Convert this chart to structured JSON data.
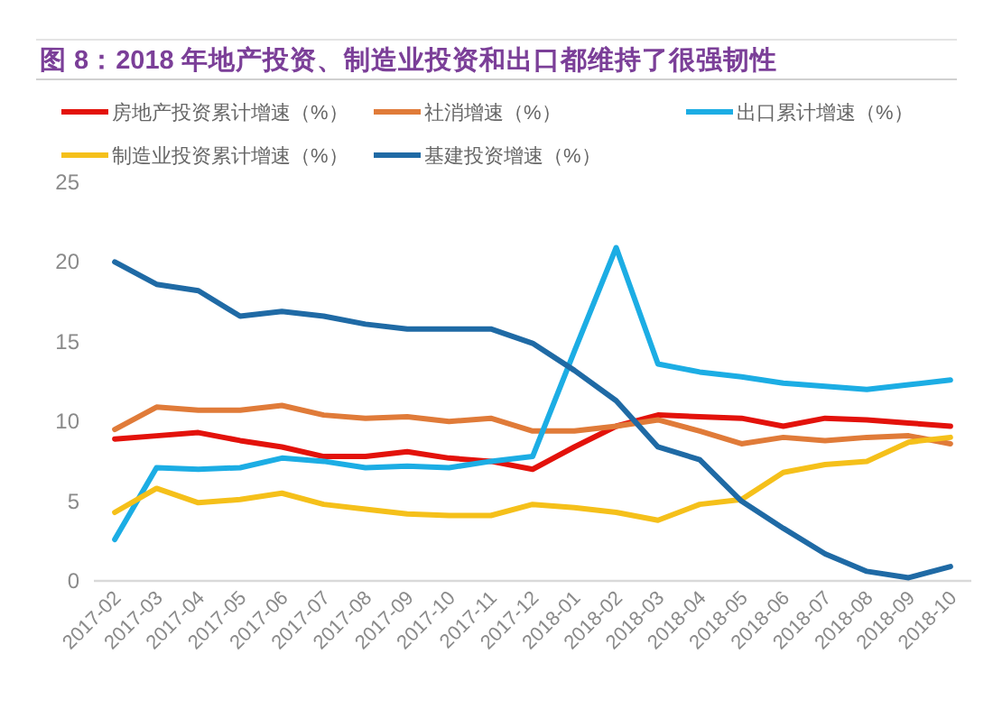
{
  "chart_data": {
    "type": "line",
    "title": "图 8：2018 年地产投资、制造业投资和出口都维持了很强韧性",
    "categories": [
      "2017-02",
      "2017-03",
      "2017-04",
      "2017-05",
      "2017-06",
      "2017-07",
      "2017-08",
      "2017-09",
      "2017-10",
      "2017-11",
      "2017-12",
      "2018-01",
      "2018-02",
      "2018-03",
      "2018-04",
      "2018-05",
      "2018-06",
      "2018-07",
      "2018-08",
      "2018-09",
      "2018-10"
    ],
    "series": [
      {
        "name": "房地产投资累计增速（%）",
        "color": "#e3120b",
        "values": [
          8.9,
          9.1,
          9.3,
          8.8,
          8.4,
          7.8,
          7.8,
          8.1,
          7.7,
          7.5,
          7.0,
          8.4,
          9.7,
          10.4,
          10.3,
          10.2,
          9.7,
          10.2,
          10.1,
          9.9,
          9.7
        ]
      },
      {
        "name": "社消增速（%）",
        "color": "#e07b39",
        "values": [
          9.5,
          10.9,
          10.7,
          10.7,
          11.0,
          10.4,
          10.2,
          10.3,
          10.0,
          10.2,
          9.4,
          9.4,
          9.7,
          10.1,
          9.4,
          8.6,
          9.0,
          8.8,
          9.0,
          9.1,
          8.6
        ]
      },
      {
        "name": "出口累计增速（%）",
        "color": "#1cade4",
        "values": [
          2.6,
          7.1,
          7.0,
          7.1,
          7.7,
          7.5,
          7.1,
          7.2,
          7.1,
          7.5,
          7.8,
          14.4,
          20.9,
          13.6,
          13.1,
          12.8,
          12.4,
          12.2,
          12.0,
          12.3,
          12.6
        ]
      },
      {
        "name": "制造业投资累计增速（%）",
        "color": "#f5c01a",
        "values": [
          4.3,
          5.8,
          4.9,
          5.1,
          5.5,
          4.8,
          4.5,
          4.2,
          4.1,
          4.1,
          4.8,
          4.6,
          4.3,
          3.8,
          4.8,
          5.1,
          6.8,
          7.3,
          7.5,
          8.7,
          9.0
        ]
      },
      {
        "name": "基建投资增速（%）",
        "color": "#1f6aa5",
        "values": [
          20.0,
          18.6,
          18.2,
          16.6,
          16.9,
          16.6,
          16.1,
          15.8,
          15.8,
          15.8,
          14.9,
          13.2,
          11.3,
          8.4,
          7.6,
          5.0,
          3.3,
          1.7,
          0.6,
          0.2,
          0.9
        ]
      }
    ],
    "ylim": [
      0,
      25
    ],
    "yticks": [
      0,
      5,
      10,
      15,
      20,
      25
    ],
    "grid": false,
    "legend": "top"
  }
}
